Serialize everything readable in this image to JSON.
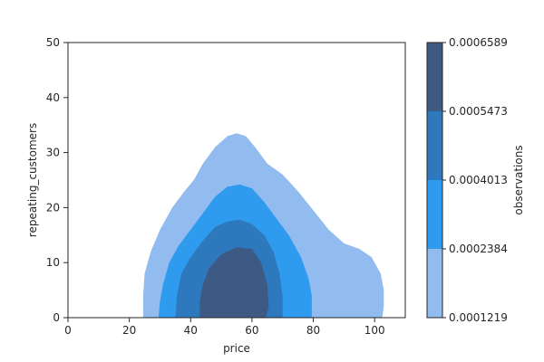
{
  "chart_data": {
    "type": "heatmap",
    "kind": "filled-kde-contour",
    "xlabel": "price",
    "ylabel": "repeating_customers",
    "xlim": [
      0,
      110
    ],
    "ylim": [
      0,
      50
    ],
    "xticks": [
      0,
      20,
      40,
      60,
      80,
      100
    ],
    "yticks": [
      0,
      10,
      20,
      30,
      40,
      50
    ],
    "grid": false,
    "colorbar": {
      "label": "observations",
      "ticks": [
        "0.0006589",
        "0.0005473",
        "0.0004013",
        "0.0002384",
        "0.0001219"
      ],
      "levels": [
        0.0001219,
        0.0002384,
        0.0004013,
        0.0005473,
        0.0006589
      ],
      "colors": [
        "#92bbf0",
        "#2f9bee",
        "#2e78bd",
        "#3d5a84"
      ]
    },
    "contours": [
      {
        "level_range": [
          "0.0001219",
          "0.0002384"
        ],
        "color": "#92bbf0",
        "outline": [
          [
            24.5,
            0
          ],
          [
            24.5,
            4
          ],
          [
            25,
            8
          ],
          [
            27,
            12
          ],
          [
            30,
            16
          ],
          [
            34,
            20
          ],
          [
            38,
            23
          ],
          [
            41,
            25
          ],
          [
            44,
            28
          ],
          [
            48,
            31
          ],
          [
            52,
            33
          ],
          [
            55,
            33.5
          ],
          [
            58,
            33
          ],
          [
            61,
            31
          ],
          [
            65,
            28
          ],
          [
            70,
            26
          ],
          [
            75,
            23
          ],
          [
            80,
            19.5
          ],
          [
            85,
            16
          ],
          [
            90,
            13.5
          ],
          [
            95,
            12.5
          ],
          [
            99,
            11
          ],
          [
            102,
            8
          ],
          [
            103,
            5
          ],
          [
            103,
            2
          ],
          [
            102.5,
            0
          ]
        ]
      },
      {
        "level_range": [
          "0.0002384",
          "0.0004013"
        ],
        "color": "#2f9bee",
        "outline": [
          [
            29.5,
            0
          ],
          [
            30,
            3
          ],
          [
            31,
            6
          ],
          [
            33,
            10
          ],
          [
            36,
            13
          ],
          [
            40,
            16
          ],
          [
            44,
            19
          ],
          [
            48,
            22
          ],
          [
            52,
            23.8
          ],
          [
            56,
            24.2
          ],
          [
            60,
            23.5
          ],
          [
            64,
            21
          ],
          [
            68,
            18
          ],
          [
            72,
            15
          ],
          [
            76,
            11
          ],
          [
            78.5,
            7
          ],
          [
            79.5,
            4
          ],
          [
            79.5,
            0
          ]
        ]
      },
      {
        "level_range": [
          "0.0004013",
          "0.0005473"
        ],
        "color": "#2e78bd",
        "outline": [
          [
            35,
            0
          ],
          [
            35.5,
            4
          ],
          [
            37,
            8
          ],
          [
            40,
            11
          ],
          [
            44,
            14
          ],
          [
            48,
            16.5
          ],
          [
            52,
            17.5
          ],
          [
            56,
            17.8
          ],
          [
            60,
            17
          ],
          [
            64,
            15
          ],
          [
            67,
            12
          ],
          [
            69,
            8
          ],
          [
            70,
            4
          ],
          [
            70,
            0
          ]
        ]
      },
      {
        "level_range": [
          "0.0005473",
          "0.0006589"
        ],
        "color": "#3d5a84",
        "outline": [
          [
            43,
            0
          ],
          [
            43,
            3
          ],
          [
            44,
            6
          ],
          [
            46,
            9
          ],
          [
            50,
            11.5
          ],
          [
            55,
            12.8
          ],
          [
            60,
            12.5
          ],
          [
            63,
            10
          ],
          [
            65,
            6
          ],
          [
            65.5,
            2
          ],
          [
            64.5,
            0
          ]
        ]
      }
    ]
  }
}
